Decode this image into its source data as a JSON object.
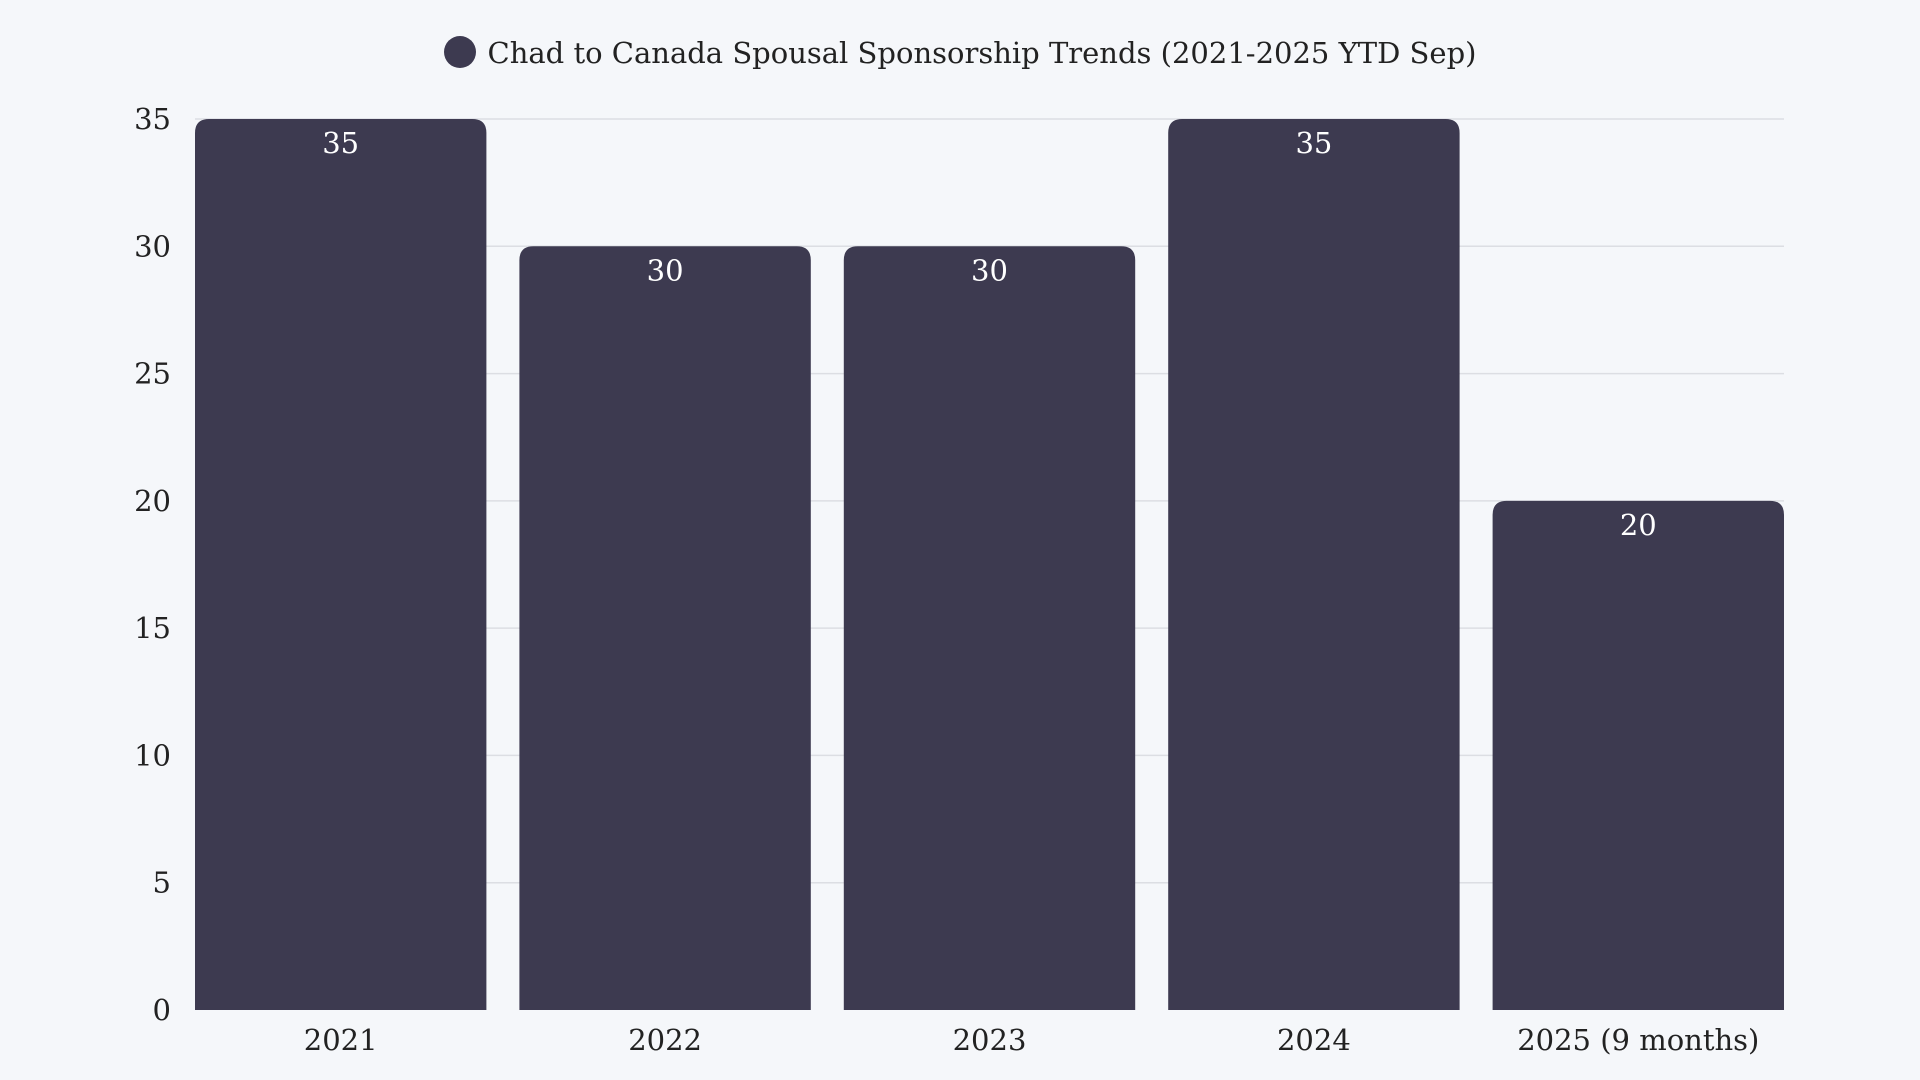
{
  "chart_data": {
    "type": "bar",
    "title": "",
    "legend": {
      "label": "Chad to Canada Spousal Sponsorship Trends (2021-2025 YTD Sep)",
      "placement": "top"
    },
    "categories": [
      "2021",
      "2022",
      "2023",
      "2024",
      "2025 (9 months)"
    ],
    "series": [
      {
        "name": "Chad to Canada Spousal Sponsorship Trends (2021-2025 YTD Sep)",
        "values": [
          35,
          30,
          30,
          35,
          20
        ]
      }
    ],
    "data_labels": [
      "35",
      "30",
      "30",
      "35",
      "20"
    ],
    "yticks": [
      "0",
      "5",
      "10",
      "15",
      "20",
      "25",
      "30",
      "35"
    ],
    "ylim": [
      0,
      35
    ],
    "xlabel": "",
    "ylabel": "",
    "grid": true,
    "colors": {
      "bar": "#3d3a50",
      "grid": "#dcdee3",
      "background": "#f5f7fa"
    }
  }
}
